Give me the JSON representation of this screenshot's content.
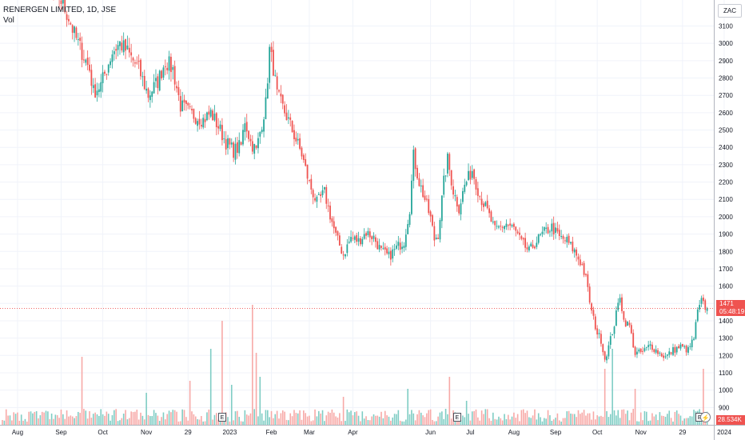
{
  "legend": {
    "symbol": "RENERGEN LIMITED, 1D, JSE",
    "vol_label": "Vol"
  },
  "currency": "ZAC",
  "price_tag": {
    "price": "1471",
    "countdown": "05:48:19"
  },
  "volume_tag": "28.534K",
  "events": [
    {
      "label": "E",
      "date_index": 116
    },
    {
      "label": "E",
      "date_index": 240
    },
    {
      "label": "E",
      "date_index": 368
    }
  ],
  "flash_icon": "lightning-icon",
  "colors": {
    "up": "#26a69a",
    "down": "#ef5350",
    "up_vol": "#7fcdc4",
    "down_vol": "#f7a9a7",
    "last_price_line": "#ef5350",
    "grid": "#f0f3fa"
  },
  "chart_data": {
    "type": "candlestick",
    "title": "RENERGEN LIMITED, 1D, JSE",
    "y_ticks": [
      900,
      1000,
      1100,
      1200,
      1300,
      1400,
      1500,
      1600,
      1700,
      1800,
      1900,
      2000,
      2100,
      2200,
      2300,
      2400,
      2500,
      2600,
      2700,
      2800,
      2900,
      3000,
      3100
    ],
    "x_ticks": [
      {
        "label": "Aug",
        "i": 8
      },
      {
        "label": "Sep",
        "i": 31
      },
      {
        "label": "Oct",
        "i": 53
      },
      {
        "label": "Nov",
        "i": 76
      },
      {
        "label": "29",
        "i": 98
      },
      {
        "label": "2023",
        "i": 120
      },
      {
        "label": "Feb",
        "i": 142
      },
      {
        "label": "Mar",
        "i": 162
      },
      {
        "label": "Apr",
        "i": 185
      },
      {
        "label": "Jun",
        "i": 226
      },
      {
        "label": "Jul",
        "i": 247
      },
      {
        "label": "Aug",
        "i": 270
      },
      {
        "label": "Sep",
        "i": 292
      },
      {
        "label": "Oct",
        "i": 314
      },
      {
        "label": "Nov",
        "i": 337
      },
      {
        "label": "29",
        "i": 359
      },
      {
        "label": "2024",
        "i": 381
      }
    ],
    "ylim": [
      800,
      3250
    ],
    "keypoints": [
      [
        0,
        3480
      ],
      [
        10,
        3400
      ],
      [
        22,
        3330
      ],
      [
        30,
        3270
      ],
      [
        35,
        3150
      ],
      [
        38,
        3050
      ],
      [
        42,
        2950
      ],
      [
        46,
        2850
      ],
      [
        48,
        2720
      ],
      [
        52,
        2760
      ],
      [
        58,
        2950
      ],
      [
        62,
        3000
      ],
      [
        66,
        2950
      ],
      [
        72,
        2850
      ],
      [
        77,
        2700
      ],
      [
        82,
        2780
      ],
      [
        86,
        2900
      ],
      [
        90,
        2850
      ],
      [
        94,
        2640
      ],
      [
        100,
        2590
      ],
      [
        106,
        2560
      ],
      [
        110,
        2600
      ],
      [
        114,
        2520
      ],
      [
        118,
        2430
      ],
      [
        122,
        2380
      ],
      [
        126,
        2410
      ],
      [
        128,
        2560
      ],
      [
        131,
        2430
      ],
      [
        134,
        2380
      ],
      [
        136,
        2490
      ],
      [
        139,
        2650
      ],
      [
        141,
        2960
      ],
      [
        143,
        2860
      ],
      [
        145,
        2700
      ],
      [
        150,
        2580
      ],
      [
        154,
        2470
      ],
      [
        158,
        2360
      ],
      [
        162,
        2190
      ],
      [
        166,
        2080
      ],
      [
        170,
        2140
      ],
      [
        173,
        2010
      ],
      [
        176,
        1890
      ],
      [
        180,
        1780
      ],
      [
        184,
        1880
      ],
      [
        188,
        1860
      ],
      [
        192,
        1910
      ],
      [
        196,
        1880
      ],
      [
        200,
        1800
      ],
      [
        204,
        1770
      ],
      [
        208,
        1820
      ],
      [
        212,
        1860
      ],
      [
        215,
        2050
      ],
      [
        217,
        2350
      ],
      [
        220,
        2200
      ],
      [
        223,
        2100
      ],
      [
        226,
        1990
      ],
      [
        228,
        1870
      ],
      [
        230,
        1900
      ],
      [
        233,
        2200
      ],
      [
        235,
        2330
      ],
      [
        238,
        2150
      ],
      [
        241,
        2050
      ],
      [
        244,
        2180
      ],
      [
        248,
        2270
      ],
      [
        252,
        2120
      ],
      [
        256,
        2030
      ],
      [
        260,
        1920
      ],
      [
        266,
        1960
      ],
      [
        270,
        1930
      ],
      [
        274,
        1850
      ],
      [
        278,
        1800
      ],
      [
        282,
        1860
      ],
      [
        286,
        1910
      ],
      [
        290,
        1940
      ],
      [
        294,
        1880
      ],
      [
        298,
        1860
      ],
      [
        302,
        1800
      ],
      [
        306,
        1720
      ],
      [
        308,
        1640
      ],
      [
        311,
        1450
      ],
      [
        314,
        1330
      ],
      [
        316,
        1290
      ],
      [
        318,
        1180
      ],
      [
        320,
        1250
      ],
      [
        323,
        1380
      ],
      [
        326,
        1550
      ],
      [
        328,
        1400
      ],
      [
        331,
        1370
      ],
      [
        334,
        1210
      ],
      [
        338,
        1220
      ],
      [
        342,
        1260
      ],
      [
        346,
        1220
      ],
      [
        350,
        1190
      ],
      [
        354,
        1230
      ],
      [
        358,
        1250
      ],
      [
        362,
        1230
      ],
      [
        365,
        1300
      ],
      [
        367,
        1450
      ],
      [
        369,
        1510
      ],
      [
        371,
        1480
      ],
      [
        372,
        1471
      ]
    ]
  }
}
